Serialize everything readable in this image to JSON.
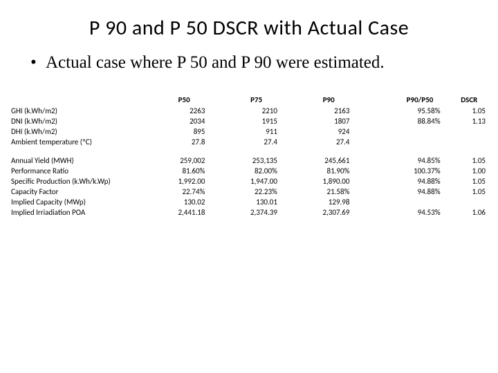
{
  "title": "P 90 and P 50 DSCR with Actual Case",
  "bullet": "Actual case where P 50 and P 90 were estimated.",
  "table": {
    "type": "table",
    "background_color": "#ffffff",
    "text_color": "#000000",
    "header_fontsize": 11,
    "body_fontsize": 11,
    "columns": [
      "",
      "P50",
      "P75",
      "P90",
      "",
      "P90/P50",
      "DSCR"
    ],
    "group1": [
      {
        "label": "GHI (k.Wh/m2)",
        "P50": "2263",
        "P75": "2210",
        "P90": "2163",
        "ratio": "95.58%",
        "dscr": "1.05"
      },
      {
        "label": "DNI (k.Wh/m2)",
        "P50": "2034",
        "P75": "1915",
        "P90": "1807",
        "ratio": "88.84%",
        "dscr": "1.13"
      },
      {
        "label": "DHI (k.Wh/m2)",
        "P50": "895",
        "P75": "911",
        "P90": "924",
        "ratio": "",
        "dscr": ""
      },
      {
        "label": "Ambient temperature (ºC)",
        "P50": "27.8",
        "P75": "27.4",
        "P90": "27.4",
        "ratio": "",
        "dscr": ""
      }
    ],
    "group2": [
      {
        "label": "Annual Yield (MWH)",
        "P50": "259,002",
        "P75": "253,135",
        "P90": "245,661",
        "ratio": "94.85%",
        "dscr": "1.05"
      },
      {
        "label": "Performance Ratio",
        "P50": "81.60%",
        "P75": "82.00%",
        "P90": "81.90%",
        "ratio": "100.37%",
        "dscr": "1.00"
      },
      {
        "label": "Specific Production (k.Wh/k.Wp)",
        "P50": "1,992.00",
        "P75": "1,947.00",
        "P90": "1,890.00",
        "ratio": "94.88%",
        "dscr": "1.05"
      },
      {
        "label": "Capacity Factor",
        "P50": "22.74%",
        "P75": "22.23%",
        "P90": "21.58%",
        "ratio": "94.88%",
        "dscr": "1.05"
      },
      {
        "label": "Implied Capacity (MWp)",
        "P50": "130.02",
        "P75": "130.01",
        "P90": "129.98",
        "ratio": "",
        "dscr": ""
      },
      {
        "label": "Implied Irriadiation POA",
        "P50": "2,441.18",
        "P75": "2,374.39",
        "P90": "2,307.69",
        "ratio": "94.53%",
        "dscr": "1.06"
      }
    ]
  }
}
